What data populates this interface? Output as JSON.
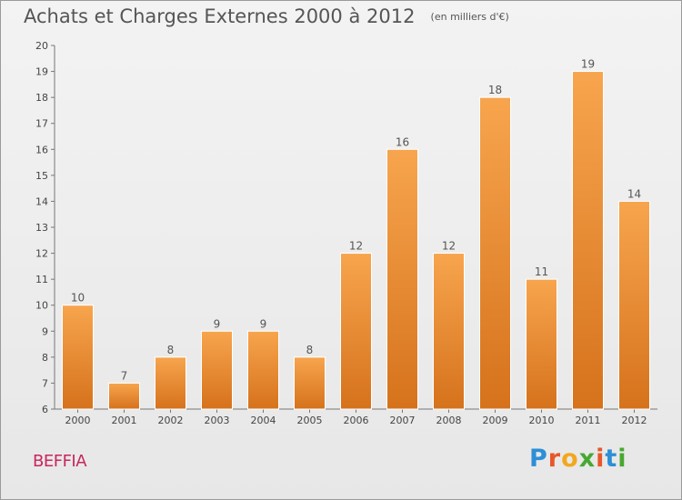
{
  "header": {
    "title": "Achats et Charges Externes 2000 à 2012",
    "subtitle": "(en milliers d'€)"
  },
  "footer": {
    "commune": "BEFFIA",
    "logo_text": "Proxiti"
  },
  "colors": {
    "bar_top": "#f7a54e",
    "bar_bottom": "#d6721c",
    "commune_text": "#c8265f",
    "logo_letters": [
      "#2d8fd6",
      "#e8562a",
      "#f2a81d",
      "#47a832",
      "#e8562a",
      "#2d8fd6",
      "#47a832"
    ]
  },
  "chart_data": {
    "type": "bar",
    "categories": [
      "2000",
      "2001",
      "2002",
      "2003",
      "2004",
      "2005",
      "2006",
      "2007",
      "2008",
      "2009",
      "2010",
      "2011",
      "2012"
    ],
    "values": [
      10,
      7,
      8,
      9,
      9,
      8,
      12,
      16,
      12,
      18,
      11,
      19,
      14
    ],
    "data_labels": [
      "10",
      "7",
      "8",
      "9",
      "9",
      "8",
      "12",
      "16",
      "12",
      "18",
      "11",
      "19",
      "14"
    ],
    "title": "Achats et Charges Externes 2000 à 2012",
    "ylim": [
      6,
      20
    ],
    "yticks": [
      6,
      7,
      8,
      9,
      10,
      11,
      12,
      13,
      14,
      15,
      16,
      17,
      18,
      19,
      20
    ],
    "grid": false,
    "legend": "none"
  }
}
